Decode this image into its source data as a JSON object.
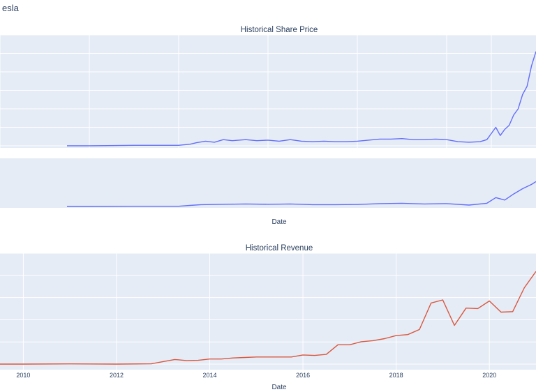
{
  "figure": {
    "title": "esla",
    "subplot_titles": [
      "Historical Share Price",
      "Historical Revenue"
    ],
    "xlabel": "Date",
    "colors": {
      "price_line": "#636efa",
      "revenue_line": "#d9573f",
      "panel_bg": "#e5ecf6",
      "grid": "#ffffff",
      "text": "#2a3f5f"
    }
  },
  "chart_data": [
    {
      "type": "line",
      "title": "Historical Share Price",
      "xlabel": "",
      "ylabel": "",
      "x_range": [
        2009.0,
        2021.0
      ],
      "y_range_frac": [
        0.0,
        1.0
      ],
      "note_y": "no y tick labels visible; values given as fraction of panel height",
      "series": [
        {
          "x": [
            2010.5,
            2011.0,
            2012.0,
            2013.0,
            2013.25,
            2013.4,
            2013.6,
            2013.8,
            2014.0,
            2014.2,
            2014.5,
            2014.75,
            2015.0,
            2015.25,
            2015.5,
            2015.75,
            2016.0,
            2016.25,
            2016.5,
            2016.75,
            2017.0,
            2017.25,
            2017.5,
            2017.75,
            2018.0,
            2018.25,
            2018.5,
            2018.75,
            2019.0,
            2019.25,
            2019.5,
            2019.75,
            2019.9,
            2020.0,
            2020.1,
            2020.2,
            2020.3,
            2020.4,
            2020.5,
            2020.6,
            2020.7,
            2020.8,
            2020.9,
            2021.0
          ],
          "y": [
            0.0,
            0.0,
            0.005,
            0.005,
            0.015,
            0.03,
            0.045,
            0.035,
            0.06,
            0.05,
            0.06,
            0.05,
            0.055,
            0.045,
            0.06,
            0.045,
            0.04,
            0.045,
            0.04,
            0.04,
            0.045,
            0.055,
            0.065,
            0.065,
            0.07,
            0.06,
            0.06,
            0.065,
            0.06,
            0.04,
            0.035,
            0.04,
            0.06,
            0.12,
            0.18,
            0.1,
            0.16,
            0.2,
            0.3,
            0.36,
            0.5,
            0.58,
            0.78,
            0.92
          ]
        }
      ]
    },
    {
      "type": "line",
      "title": "",
      "xlabel": "Date",
      "ylabel": "",
      "x_range": [
        2009.0,
        2021.0
      ],
      "y_range_frac": [
        0.0,
        1.0
      ],
      "note_y": "range-slider preview of share price; values as fraction of panel height",
      "series": [
        {
          "x": [
            2010.5,
            2011.0,
            2012.0,
            2013.0,
            2013.25,
            2013.5,
            2014.0,
            2014.5,
            2015.0,
            2015.5,
            2016.0,
            2016.5,
            2017.0,
            2017.5,
            2018.0,
            2018.5,
            2019.0,
            2019.5,
            2019.9,
            2020.1,
            2020.3,
            2020.5,
            2020.7,
            2020.9,
            2021.0
          ],
          "y": [
            0.0,
            0.0,
            0.005,
            0.005,
            0.03,
            0.05,
            0.06,
            0.07,
            0.06,
            0.07,
            0.05,
            0.05,
            0.055,
            0.08,
            0.09,
            0.07,
            0.08,
            0.04,
            0.09,
            0.25,
            0.18,
            0.35,
            0.5,
            0.62,
            0.7
          ]
        }
      ]
    },
    {
      "type": "line",
      "title": "Historical Revenue",
      "xlabel": "Date",
      "ylabel": "",
      "x_range": [
        2009.5,
        2021.0
      ],
      "x_ticks": [
        2010,
        2012,
        2014,
        2016,
        2018,
        2020
      ],
      "y_range_frac": [
        0.0,
        1.0
      ],
      "note_y": "no y tick labels visible; values given as fraction of panel height",
      "series": [
        {
          "x": [
            2009.5,
            2010.0,
            2011.0,
            2012.0,
            2012.75,
            2013.0,
            2013.25,
            2013.5,
            2013.75,
            2014.0,
            2014.25,
            2014.5,
            2014.75,
            2015.0,
            2015.25,
            2015.5,
            2015.75,
            2016.0,
            2016.25,
            2016.5,
            2016.75,
            2017.0,
            2017.25,
            2017.5,
            2017.75,
            2018.0,
            2018.25,
            2018.5,
            2018.75,
            2019.0,
            2019.25,
            2019.5,
            2019.75,
            2020.0,
            2020.25,
            2020.5,
            2020.75,
            2021.0
          ],
          "y": [
            0.0,
            0.0,
            0.002,
            0.0,
            0.003,
            0.025,
            0.045,
            0.035,
            0.037,
            0.05,
            0.05,
            0.06,
            0.065,
            0.07,
            0.07,
            0.07,
            0.07,
            0.09,
            0.085,
            0.095,
            0.19,
            0.19,
            0.22,
            0.23,
            0.25,
            0.28,
            0.29,
            0.34,
            0.6,
            0.63,
            0.38,
            0.55,
            0.545,
            0.62,
            0.51,
            0.515,
            0.75,
            0.91
          ]
        }
      ]
    }
  ]
}
